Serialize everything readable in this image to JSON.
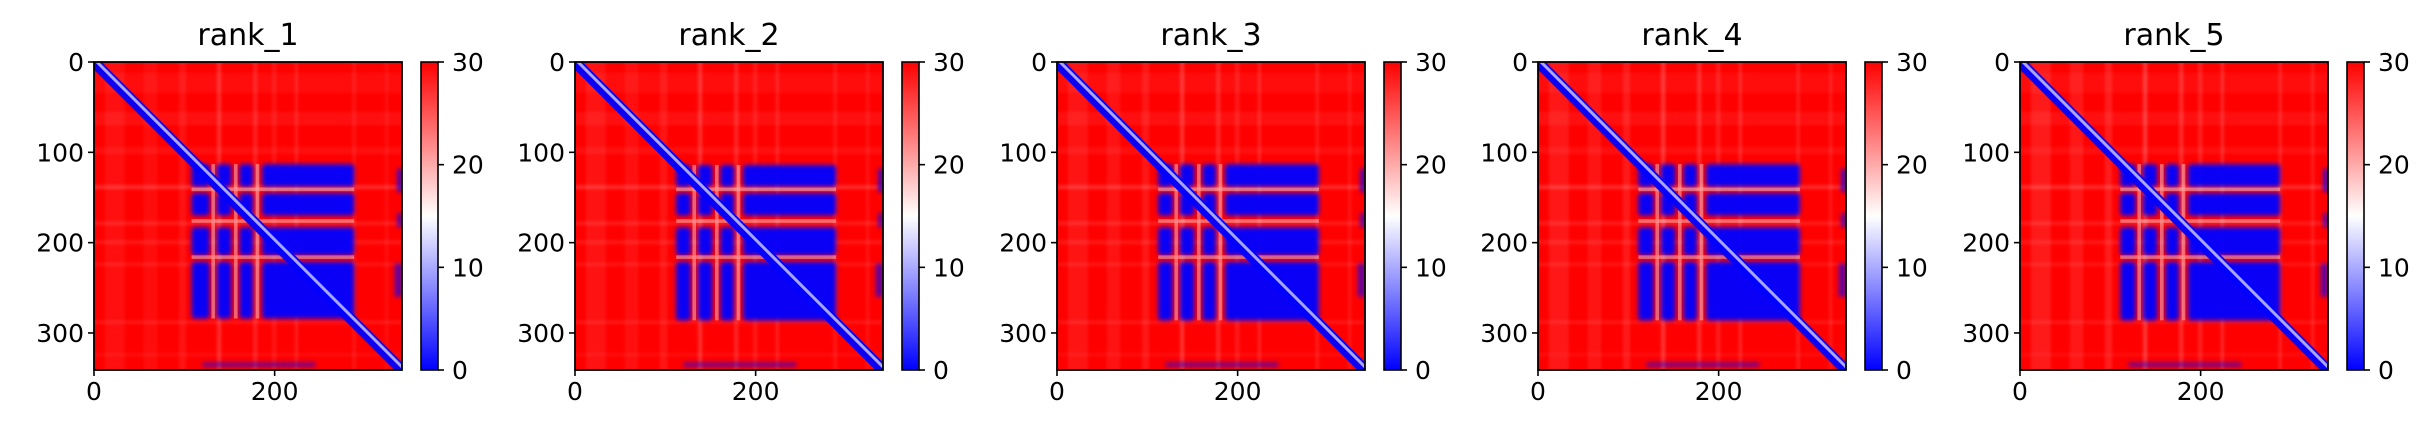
{
  "figure": {
    "description_kind": "pae-contact-heatmap-grid"
  },
  "colorbar": {
    "range": [
      0,
      30
    ],
    "ticks": [
      0,
      10,
      20,
      30
    ],
    "colormap": "bwr",
    "colors": {
      "low": "#0000ff",
      "mid": "#ffffff",
      "high": "#ff0000"
    }
  },
  "chart_data": [
    {
      "type": "heatmap",
      "title": "rank_1",
      "xlabel": "",
      "ylabel": "",
      "xlim": [
        0,
        341
      ],
      "ylim": [
        341,
        0
      ],
      "xticks": [
        0,
        200
      ],
      "yticks": [
        0,
        100,
        200,
        300
      ],
      "colorbar_range": [
        0,
        30
      ],
      "colorbar_ticks": [
        0,
        10,
        20,
        30
      ]
    },
    {
      "type": "heatmap",
      "title": "rank_2",
      "xlabel": "",
      "ylabel": "",
      "xlim": [
        0,
        341
      ],
      "ylim": [
        341,
        0
      ],
      "xticks": [
        0,
        200
      ],
      "yticks": [
        0,
        100,
        200,
        300
      ],
      "colorbar_range": [
        0,
        30
      ],
      "colorbar_ticks": [
        0,
        10,
        20,
        30
      ]
    },
    {
      "type": "heatmap",
      "title": "rank_3",
      "xlabel": "",
      "ylabel": "",
      "xlim": [
        0,
        341
      ],
      "ylim": [
        341,
        0
      ],
      "xticks": [
        0,
        200
      ],
      "yticks": [
        0,
        100,
        200,
        300
      ],
      "colorbar_range": [
        0,
        30
      ],
      "colorbar_ticks": [
        0,
        10,
        20,
        30
      ]
    },
    {
      "type": "heatmap",
      "title": "rank_4",
      "xlabel": "",
      "ylabel": "",
      "xlim": [
        0,
        341
      ],
      "ylim": [
        341,
        0
      ],
      "xticks": [
        0,
        200
      ],
      "yticks": [
        0,
        100,
        200,
        300
      ],
      "colorbar_range": [
        0,
        30
      ],
      "colorbar_ticks": [
        0,
        10,
        20,
        30
      ]
    },
    {
      "type": "heatmap",
      "title": "rank_5",
      "xlabel": "",
      "ylabel": "",
      "xlim": [
        0,
        341
      ],
      "ylim": [
        341,
        0
      ],
      "xticks": [
        0,
        200
      ],
      "yticks": [
        0,
        100,
        200,
        300
      ],
      "colorbar_range": [
        0,
        30
      ],
      "colorbar_ticks": [
        0,
        10,
        20,
        30
      ]
    }
  ]
}
